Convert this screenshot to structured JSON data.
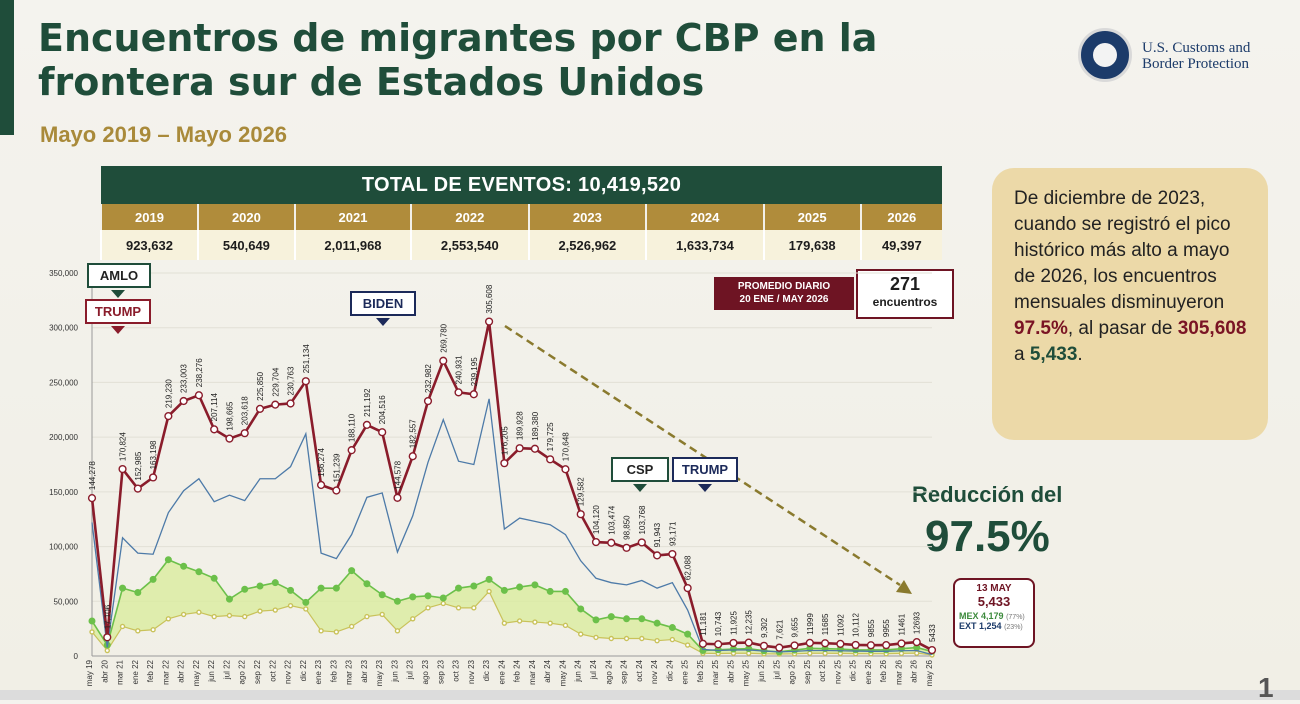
{
  "title": "Encuentros de migrantes por CBP en la frontera sur de Estados Unidos",
  "subtitle": "Mayo 2019 – Mayo 2026",
  "logo": {
    "line1": "U.S. Customs and",
    "line2": "Border Protection"
  },
  "totals": {
    "header": "TOTAL DE EVENTOS: 10,419,520",
    "years": [
      "2019",
      "2020",
      "2021",
      "2022",
      "2023",
      "2024",
      "2025",
      "2026"
    ],
    "values": [
      "923,632",
      "540,649",
      "2,011,968",
      "2,553,540",
      "2,526,962",
      "1,633,734",
      "179,638",
      "49,397"
    ]
  },
  "info_box": {
    "text": "De diciembre de 2023, cuando se registró el pico histórico más alto a mayo de 2026, los encuentros mensuales disminuyeron ",
    "pct": "97.5%",
    "mid": ", al pasar de ",
    "from": "305,608",
    "a": " a ",
    "to": "5,433",
    "end": "."
  },
  "reduction": {
    "label": "Reducción del",
    "value": "97.5%"
  },
  "promedio": {
    "label_line1": "PROMEDIO DIARIO",
    "label_line2": "20 ENE / MAY 2026",
    "value": "271",
    "unit": "encuentros"
  },
  "may_box": {
    "date": "13 MAY",
    "total": "5,433",
    "mex_label": "MEX",
    "mex": "4,179",
    "mex_pct": "(77%)",
    "ext_label": "EXT",
    "ext": "1,254",
    "ext_pct": "(23%)"
  },
  "page_number": "1",
  "colors": {
    "dark_green": "#1f4d3a",
    "gold": "#b08c3b",
    "maroon": "#8a1c2b",
    "blue": "#4d7aa8",
    "green": "#6cc04a",
    "olive": "#c9c25a",
    "navy": "#1c2a5a"
  },
  "chart_data": {
    "type": "line",
    "ylim": [
      0,
      350000
    ],
    "yticks": [
      0,
      50000,
      100000,
      150000,
      200000,
      250000,
      300000,
      350000
    ],
    "ytick_labels": [
      "0",
      "50,000",
      "100,000",
      "150,000",
      "200,000",
      "250,000",
      "300,000",
      "350,000"
    ],
    "x": [
      "may.19",
      "abr.20",
      "mar.21",
      "ene.22",
      "feb.22",
      "mar.22",
      "abr.22",
      "may.22",
      "jun.22",
      "jul.22",
      "ago.22",
      "sep.22",
      "oct.22",
      "nov.22",
      "dic.22",
      "ene.23",
      "feb.23",
      "mar.23",
      "abr.23",
      "may.23",
      "jun.23",
      "jul.23",
      "ago.23",
      "sep.23",
      "oct.23",
      "nov.23",
      "dic.23",
      "ene.24",
      "feb.24",
      "mar.24",
      "abr.24",
      "may.24",
      "jun.24",
      "jul.24",
      "ago.24",
      "sep.24",
      "oct.24",
      "nov.24",
      "dic.24",
      "ene.25",
      "feb.25",
      "mar.25",
      "abr.25",
      "may.25",
      "jun.25",
      "jul.25",
      "ago.25",
      "sep.25",
      "oct.25",
      "nov.25",
      "dic.25",
      "ene.26",
      "feb.26",
      "mar.26",
      "abr.26",
      "may.26"
    ],
    "x_labels": [
      "may 19",
      "abr 20",
      "mar 21",
      "ene 22",
      "feb 22",
      "mar 22",
      "abr 22",
      "may 22",
      "jun 22",
      "jul 22",
      "ago 22",
      "sep 22",
      "oct 22",
      "nov 22",
      "dic 22",
      "ene 23",
      "feb 23",
      "mar 23",
      "abr 23",
      "may 23",
      "jun 23",
      "jul 23",
      "ago 23",
      "sep 23",
      "oct 23",
      "nov 23",
      "dic 23",
      "ene 24",
      "feb 24",
      "mar 24",
      "abr 24",
      "may 24",
      "jun 24",
      "jul 24",
      "ago 24",
      "sep 24",
      "oct 24",
      "nov 24",
      "dic 24",
      "ene 25",
      "feb 25",
      "mar 25",
      "abr 25",
      "may 25",
      "jun 25",
      "jul 25",
      "ago 25",
      "sep 25",
      "oct 25",
      "nov 25",
      "dic 25",
      "ene 26",
      "feb 26",
      "mar 26",
      "abr 26",
      "may 26"
    ],
    "series": [
      {
        "values": [
          144278,
          17106,
          170824,
          152985,
          163198,
          219230,
          233003,
          238276,
          207114,
          198665,
          203618,
          225850,
          229704,
          230763,
          251134,
          156274,
          151239,
          188110,
          211192,
          204516,
          144578,
          182557,
          232982,
          269780,
          240931,
          239195,
          305608,
          176205,
          189928,
          189380,
          179725,
          170648,
          129582,
          104120,
          103474,
          98850,
          103768,
          91943,
          93171,
          62088,
          11181,
          10743,
          11925,
          12235,
          9302,
          7621,
          9655,
          11999,
          11685,
          11092,
          10112,
          9855,
          9955,
          11461,
          12693,
          5433
        ],
        "labels": [
          "144,278",
          "17,106",
          "170,824",
          "152,985",
          "163,198",
          "219,230",
          "233,003",
          "238,276",
          "207,114",
          "198,665",
          "203,618",
          "225,850",
          "229,704",
          "230,763",
          "251,134",
          "156,274",
          "151,239",
          "188,110",
          "211,192",
          "204,516",
          "144,578",
          "182,557",
          "232,982",
          "269,780",
          "240,931",
          "239,195",
          "305,608",
          "176,205",
          "189,928",
          "189,380",
          "179,725",
          "170,648",
          "129,582",
          "104,120",
          "103,474",
          "98,850",
          "103,768",
          "91,943",
          "93,171",
          "62,088",
          "11,181",
          "10,743",
          "11,925",
          "12,235",
          "9,302",
          "7,621",
          "9,655",
          "11999",
          "11685",
          "11092",
          "10,112",
          "9855",
          "9955",
          "11461",
          "12693",
          "5433"
        ]
      },
      {
        "values": [
          122000,
          8000,
          108000,
          94000,
          93000,
          131000,
          151000,
          162000,
          141000,
          147000,
          142000,
          162000,
          162000,
          173000,
          203000,
          94000,
          89000,
          111000,
          145000,
          149000,
          95000,
          128000,
          177000,
          216000,
          178000,
          175000,
          235000,
          116000,
          126000,
          123000,
          120000,
          111000,
          87000,
          71000,
          67000,
          65000,
          69000,
          62000,
          67000,
          42000,
          6000,
          5000,
          5500,
          5500,
          4500,
          3800,
          4200,
          5000,
          5000,
          4800,
          4500,
          4300,
          4300,
          4800,
          5000,
          1254
        ]
      },
      {
        "values": [
          32000,
          10000,
          62000,
          58000,
          70000,
          88000,
          82000,
          77000,
          71000,
          52000,
          61000,
          64000,
          67000,
          60000,
          49000,
          62000,
          62000,
          78000,
          66000,
          56000,
          50000,
          54000,
          55000,
          53000,
          62000,
          64000,
          70000,
          60000,
          63000,
          65000,
          59000,
          59000,
          43000,
          33000,
          36000,
          34000,
          34000,
          30000,
          26000,
          20000,
          5000,
          5700,
          6400,
          6700,
          4800,
          3800,
          5400,
          7000,
          6700,
          6300,
          5600,
          5500,
          5600,
          6700,
          7700,
          4179
        ]
      },
      {
        "values": [
          22000,
          5000,
          27000,
          23000,
          24000,
          34000,
          38000,
          40000,
          36000,
          37000,
          36000,
          41000,
          42000,
          46000,
          43000,
          23000,
          22000,
          27000,
          36000,
          38000,
          23000,
          34000,
          44000,
          48000,
          44000,
          44000,
          59000,
          30000,
          32000,
          31000,
          30000,
          28000,
          20000,
          17000,
          16000,
          16000,
          16000,
          14000,
          15000,
          10000,
          2500,
          2300,
          2500,
          2500,
          2000,
          1800,
          2000,
          2500,
          2500,
          2400,
          2200,
          2100,
          2100,
          2400,
          2600,
          1000
        ]
      }
    ],
    "annotations": [
      "AMLO",
      "TRUMP",
      "BIDEN",
      "CSP",
      "TRUMP"
    ]
  }
}
